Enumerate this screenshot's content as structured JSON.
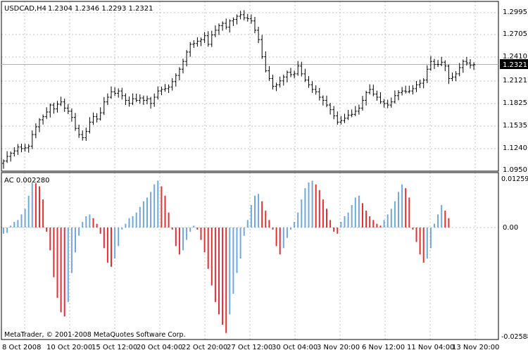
{
  "header": {
    "symbol": "USDCAD,H4",
    "ohlc": "1.2304 1.2346 1.2293 1.2321"
  },
  "indicator": {
    "label": "AC 0.002280"
  },
  "price_axis": {
    "ticks": [
      "1.2995",
      "1.2705",
      "1.2410",
      "1.2121",
      "1.1825",
      "1.1535",
      "1.1240",
      "1.0950"
    ],
    "current_price": "1.2321"
  },
  "indicator_axis": {
    "ticks": [
      "0.012599",
      "0.00",
      "-0.025885"
    ]
  },
  "time_axis": {
    "ticks": [
      "8 Oct 2008",
      "10 Oct 20:00",
      "15 Oct 12:00",
      "20 Oct 04:00",
      "22 Oct 20:00",
      "27 Oct 12:00",
      "30 Oct 04:00",
      "3 Nov 20:00",
      "6 Nov 12:00",
      "11 Nov 04:00",
      "13 Nov 20:00"
    ]
  },
  "copyright": "MetaTrader, © 2001-2008 MetaQuotes Software Corp.",
  "colors": {
    "background": "#ffffff",
    "bars": "#000000",
    "grid": "#c0c0c0",
    "ac_up": "#6fa8dc",
    "ac_down": "#e03030",
    "price_label_bg": "#000000",
    "price_label_fg": "#ffffff"
  },
  "chart_data": [
    {
      "type": "ohlc",
      "title": "USDCAD,H4",
      "ylim": [
        1.095,
        1.3
      ],
      "close": [
        1.108,
        1.114,
        1.118,
        1.121,
        1.126,
        1.124,
        1.125,
        1.127,
        1.142,
        1.152,
        1.161,
        1.165,
        1.171,
        1.18,
        1.175,
        1.181,
        1.184,
        1.176,
        1.172,
        1.164,
        1.15,
        1.142,
        1.138,
        1.146,
        1.158,
        1.165,
        1.162,
        1.17,
        1.184,
        1.19,
        1.197,
        1.195,
        1.198,
        1.192,
        1.186,
        1.182,
        1.188,
        1.186,
        1.189,
        1.186,
        1.188,
        1.182,
        1.19,
        1.198,
        1.2,
        1.201,
        1.203,
        1.21,
        1.218,
        1.226,
        1.236,
        1.248,
        1.258,
        1.259,
        1.262,
        1.264,
        1.269,
        1.258,
        1.27,
        1.276,
        1.282,
        1.285,
        1.28,
        1.288,
        1.29,
        1.294,
        1.296,
        1.292,
        1.291,
        1.288,
        1.276,
        1.264,
        1.242,
        1.224,
        1.214,
        1.204,
        1.206,
        1.211,
        1.216,
        1.222,
        1.219,
        1.22,
        1.23,
        1.22,
        1.212,
        1.206,
        1.2,
        1.197,
        1.19,
        1.186,
        1.18,
        1.174,
        1.166,
        1.158,
        1.16,
        1.163,
        1.167,
        1.168,
        1.172,
        1.176,
        1.186,
        1.196,
        1.2,
        1.194,
        1.19,
        1.184,
        1.182,
        1.18,
        1.184,
        1.192,
        1.196,
        1.198,
        1.197,
        1.198,
        1.201,
        1.206,
        1.208,
        1.212,
        1.226,
        1.236,
        1.232,
        1.232,
        1.235,
        1.23,
        1.214,
        1.216,
        1.22,
        1.228,
        1.236,
        1.234,
        1.231,
        1.232
      ]
    },
    {
      "type": "bar",
      "title": "AC 0.002280",
      "ylim": [
        -0.025885,
        0.012599
      ],
      "values": [
        -0.0015,
        -0.0013,
        0.0005,
        0.0015,
        0.002,
        0.0035,
        0.005,
        0.0085,
        0.012,
        0.0118,
        0.011,
        0.0075,
        -0.001,
        -0.0055,
        -0.012,
        -0.017,
        -0.0205,
        -0.0215,
        -0.018,
        -0.011,
        -0.006,
        -0.002,
        0.0015,
        0.003,
        0.0035,
        0.0025,
        0.001,
        -0.0015,
        -0.005,
        -0.0085,
        -0.0095,
        -0.0075,
        -0.0045,
        -0.0005,
        0.001,
        0.0025,
        0.003,
        0.004,
        0.0055,
        0.007,
        0.008,
        0.0095,
        0.0115,
        0.0125,
        0.011,
        0.0085,
        0.004,
        -0.0005,
        -0.0045,
        -0.0065,
        -0.0055,
        -0.003,
        -0.001,
        0.0005,
        -0.0005,
        -0.003,
        -0.006,
        -0.01,
        -0.014,
        -0.018,
        -0.021,
        -0.0235,
        -0.0255,
        -0.021,
        -0.016,
        -0.011,
        -0.0075,
        -0.002,
        0.002,
        0.006,
        0.0085,
        0.009,
        0.007,
        0.0045,
        0.002,
        -0.0005,
        -0.0045,
        -0.0065,
        -0.005,
        -0.0025,
        -0.0005,
        0.0015,
        0.004,
        0.0075,
        0.0105,
        0.012,
        0.0125,
        0.0115,
        0.01,
        0.0075,
        0.005,
        0.002,
        -0.001,
        -0.0015,
        0.0015,
        0.003,
        0.004,
        0.006,
        0.008,
        0.0085,
        0.0065,
        0.0045,
        0.003,
        0.002,
        0.001,
        0.0005,
        0.002,
        0.0035,
        0.005,
        0.007,
        0.0095,
        0.0115,
        0.0105,
        0.008,
        -0.0005,
        -0.0035,
        -0.0065,
        -0.0085,
        -0.0075,
        -0.005,
        0.001,
        0.0035,
        0.006,
        0.0045,
        0.0025
      ]
    }
  ]
}
